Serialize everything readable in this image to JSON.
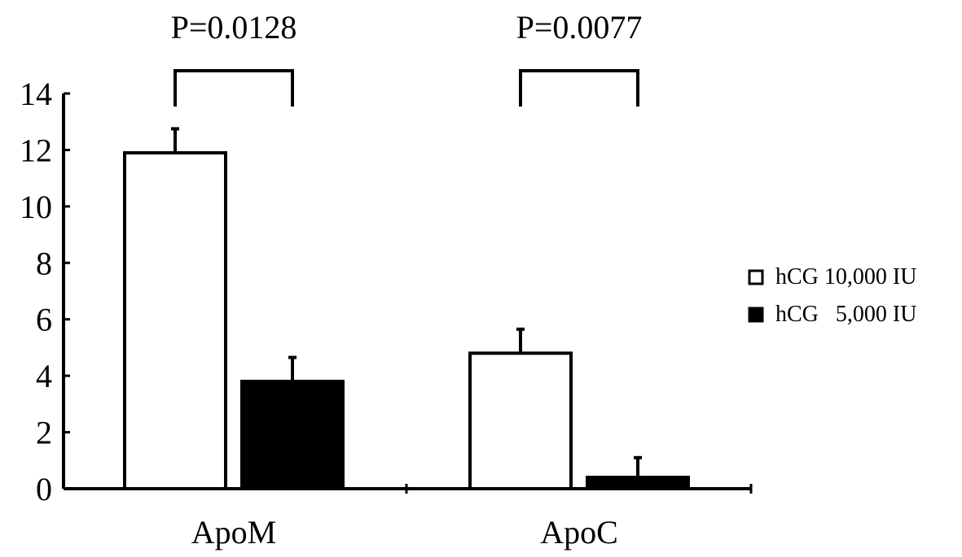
{
  "chart_data": {
    "type": "bar",
    "categories": [
      "ApoM",
      "ApoC"
    ],
    "series": [
      {
        "name": "hCG 10,000 IU",
        "values": [
          11.9,
          4.8
        ],
        "errors": [
          0.85,
          0.85
        ],
        "fill": "#ffffff"
      },
      {
        "name": "hCG   5,000 IU",
        "values": [
          3.8,
          0.4
        ],
        "errors": [
          0.85,
          0.7
        ],
        "fill": "#000000"
      }
    ],
    "ylim": [
      0,
      14
    ],
    "yticks": [
      "0",
      "2",
      "4",
      "6",
      "8",
      "10",
      "12",
      "14"
    ],
    "annotations": [
      {
        "category": "ApoM",
        "text": "P=0.0128"
      },
      {
        "category": "ApoC",
        "text": "P=0.0077"
      }
    ],
    "legend_position": "right",
    "grid": false,
    "title": "",
    "xlabel": "",
    "ylabel": ""
  }
}
